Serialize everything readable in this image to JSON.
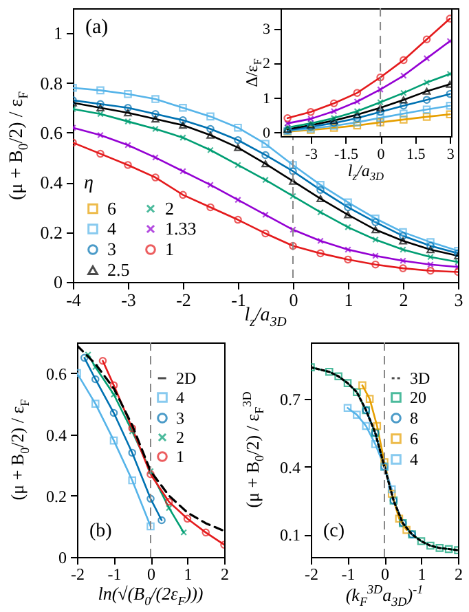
{
  "chart_data": [
    {
      "type": "line",
      "xlabel": "l$_{z}$/a$_{3D}$",
      "ylabel": "(μ + B$_{0}$/2) / ε$_{F}$",
      "legend_title": "η",
      "annotations": [
        "(a)"
      ],
      "legend": "bottom left",
      "line_style": "solid",
      "xlim": [
        -4,
        3
      ],
      "ylim": [
        0,
        1.1
      ],
      "xticks": [
        -4,
        -3,
        -2,
        -1,
        0,
        1,
        2,
        3
      ],
      "yticks": [
        0,
        0.2,
        0.4,
        0.6,
        0.8,
        1
      ],
      "ref_lines": [
        {
          "axis": "x",
          "value": 0,
          "color": "#888888",
          "line_style": "dashed"
        }
      ],
      "x": [
        -4,
        -3.5,
        -3,
        -2.5,
        -2,
        -1.5,
        -1,
        -0.5,
        0,
        0.5,
        1,
        1.5,
        2,
        2.5,
        3
      ],
      "series": [
        {
          "name": "6",
          "color": "#e69f00",
          "marker": "square",
          "values": [
            null,
            null,
            null,
            null,
            null,
            null,
            null,
            null,
            null,
            null,
            null,
            null,
            null,
            null,
            null
          ]
        },
        {
          "name": "4",
          "color": "#56b4e9",
          "marker": "square",
          "values": [
            0.78,
            0.77,
            0.755,
            0.735,
            0.7,
            0.665,
            0.62,
            0.555,
            0.47,
            0.39,
            0.32,
            0.255,
            0.2,
            0.16,
            0.125
          ]
        },
        {
          "name": "3",
          "color": "#0072b2",
          "marker": "circle",
          "values": [
            0.73,
            0.715,
            0.7,
            0.675,
            0.65,
            0.615,
            0.57,
            0.51,
            0.445,
            0.37,
            0.3,
            0.24,
            0.185,
            0.145,
            0.115
          ]
        },
        {
          "name": "2.5",
          "color": "#000000",
          "marker": "triangle",
          "values": [
            0.72,
            0.7,
            0.68,
            0.655,
            0.63,
            0.59,
            0.54,
            0.475,
            0.405,
            0.335,
            0.27,
            0.21,
            0.165,
            0.13,
            0.105
          ]
        },
        {
          "name": "2",
          "color": "#009e73",
          "marker": "cross",
          "values": [
            0.695,
            0.675,
            0.645,
            0.615,
            0.58,
            0.53,
            0.47,
            0.41,
            0.345,
            0.28,
            0.22,
            0.17,
            0.13,
            0.1,
            0.08
          ]
        },
        {
          "name": "1.33",
          "color": "#9400d3",
          "marker": "cross",
          "values": [
            0.62,
            0.59,
            0.55,
            0.5,
            0.445,
            0.39,
            0.33,
            0.27,
            0.21,
            0.165,
            0.13,
            0.105,
            0.085,
            0.07,
            0.06
          ]
        },
        {
          "name": "1",
          "color": "#e41a1c",
          "marker": "circle",
          "values": [
            0.56,
            0.515,
            0.47,
            0.42,
            0.35,
            0.3,
            0.25,
            0.195,
            0.145,
            0.115,
            0.09,
            0.07,
            0.055,
            0.045,
            0.04
          ]
        }
      ]
    },
    {
      "type": "line",
      "xlabel": "l$_{z}$/a$_{3D}$",
      "ylabel": "Δ/ε$_{F}$",
      "line_style": "solid",
      "xlim": [
        -4.3,
        3.05
      ],
      "ylim": [
        -0.1,
        3.6
      ],
      "xticks": [
        -3,
        -1.5,
        0,
        1.5,
        3
      ],
      "yticks": [
        0,
        1,
        2,
        3
      ],
      "ref_lines": [
        {
          "axis": "x",
          "value": 0,
          "color": "#888888",
          "line_style": "dashed"
        }
      ],
      "x": [
        -4,
        -3,
        -2,
        -1,
        0,
        1,
        2,
        3
      ],
      "series": [
        {
          "color": "#e69f00",
          "marker": "square",
          "values": [
            0.03,
            0.08,
            0.14,
            0.21,
            0.3,
            0.38,
            0.46,
            0.53
          ]
        },
        {
          "color": "#56b4e9",
          "marker": "square",
          "values": [
            0.05,
            0.12,
            0.2,
            0.3,
            0.43,
            0.55,
            0.67,
            0.78
          ]
        },
        {
          "color": "#0072b2",
          "marker": "circle",
          "values": [
            0.07,
            0.17,
            0.28,
            0.42,
            0.6,
            0.78,
            0.95,
            1.12
          ]
        },
        {
          "color": "#000000",
          "marker": "triangle",
          "values": [
            0.1,
            0.22,
            0.35,
            0.52,
            0.72,
            0.95,
            1.2,
            1.4
          ]
        },
        {
          "color": "#009e73",
          "marker": "cross",
          "values": [
            0.15,
            0.27,
            0.42,
            0.62,
            0.88,
            1.15,
            1.45,
            1.7
          ]
        },
        {
          "color": "#9400d3",
          "marker": "cross",
          "values": [
            0.27,
            0.4,
            0.62,
            0.9,
            1.25,
            1.65,
            2.15,
            2.65
          ]
        },
        {
          "color": "#e41a1c",
          "marker": "circle",
          "values": [
            0.42,
            0.6,
            0.85,
            1.15,
            1.6,
            2.1,
            2.7,
            3.3
          ]
        }
      ]
    },
    {
      "type": "line",
      "xlabel": "ln(√(B$_{0}$/(2ε$_{F}$)))",
      "ylabel": "(μ + B$_{0}$/2) / ε$_{F}$",
      "annotations": [
        "(b)"
      ],
      "legend": "top right",
      "line_style": "solid",
      "xlim": [
        -2,
        2
      ],
      "ylim": [
        0,
        0.7
      ],
      "xticks": [
        -2,
        -1,
        0,
        1,
        2
      ],
      "yticks": [
        0,
        0.2,
        0.4,
        0.6
      ],
      "ref_lines": [
        {
          "axis": "x",
          "value": 0,
          "color": "#888888",
          "line_style": "dashed"
        }
      ],
      "series": [
        {
          "name": "2D",
          "color": "#000000",
          "marker": "none",
          "line_style": "dashed",
          "x": [
            -2,
            -1.5,
            -1,
            -0.5,
            0,
            0.5,
            1,
            1.5,
            2
          ],
          "values": [
            0.69,
            0.63,
            0.55,
            0.43,
            0.28,
            0.2,
            0.145,
            0.11,
            0.085
          ]
        },
        {
          "name": "4",
          "color": "#56b4e9",
          "marker": "square",
          "x": [
            -2,
            -1.5,
            -1,
            -0.5,
            0
          ],
          "values": [
            0.6,
            0.5,
            0.38,
            0.25,
            0.1
          ]
        },
        {
          "name": "3",
          "color": "#0072b2",
          "marker": "circle",
          "x": [
            -1.8,
            -1.5,
            -1,
            -0.5,
            0,
            0.3
          ],
          "values": [
            0.65,
            0.58,
            0.47,
            0.34,
            0.19,
            0.12
          ]
        },
        {
          "name": "2",
          "color": "#009e73",
          "marker": "cross",
          "x": [
            -1.7,
            -1.5,
            -1,
            -0.5,
            0,
            0.5,
            0.9
          ],
          "values": [
            0.66,
            0.62,
            0.53,
            0.41,
            0.28,
            0.16,
            0.08
          ]
        },
        {
          "name": "1",
          "color": "#e41a1c",
          "marker": "circle",
          "x": [
            -1.3,
            -1,
            -0.5,
            0,
            0.5,
            1,
            1.5,
            2
          ],
          "values": [
            0.64,
            0.56,
            0.42,
            0.27,
            0.18,
            0.125,
            0.08,
            0.04
          ]
        }
      ]
    },
    {
      "type": "line",
      "xlabel": "(k$_{F}$$^{3D}$a$_{3D}$)$^{-1}$",
      "ylabel": "(μ + B$_{0}$/2) / ε$_{F}$$^{3D}$",
      "annotations": [
        "(c)"
      ],
      "legend": "top right",
      "line_style": "solid",
      "xlim": [
        -2,
        2
      ],
      "ylim": [
        0,
        0.95
      ],
      "xticks": [
        -2,
        -1,
        0,
        1,
        2
      ],
      "yticks": [
        0.1,
        0.4,
        0.7
      ],
      "ref_lines": [
        {
          "axis": "x",
          "value": 0,
          "color": "#888888",
          "line_style": "dashed"
        }
      ],
      "series": [
        {
          "name": "3D",
          "color": "#000000",
          "marker": "none",
          "line_style": "dotted",
          "x": [
            -2,
            -1.75,
            -1.5,
            -1.25,
            -1,
            -0.75,
            -0.5,
            -0.25,
            0,
            0.25,
            0.5,
            0.75,
            1,
            1.25,
            1.5,
            1.75,
            2
          ],
          "values": [
            0.84,
            0.83,
            0.82,
            0.8,
            0.77,
            0.73,
            0.65,
            0.55,
            0.4,
            0.25,
            0.15,
            0.1,
            0.07,
            0.05,
            0.04,
            0.035,
            0.03
          ]
        },
        {
          "name": "20",
          "color": "#009e73",
          "marker": "square",
          "x": [
            -2,
            -1.5,
            -1.25,
            -1,
            -0.75,
            -0.5,
            -0.25,
            0,
            0.25,
            0.5,
            0.75,
            1,
            1.25,
            1.5,
            1.75,
            2
          ],
          "values": [
            0.84,
            0.82,
            0.8,
            0.77,
            0.73,
            0.65,
            0.55,
            0.4,
            0.25,
            0.15,
            0.1,
            0.07,
            0.05,
            0.04,
            0.035,
            0.03
          ]
        },
        {
          "name": "8",
          "color": "#0072b2",
          "marker": "circle",
          "x": [
            -0.5,
            -0.25,
            0,
            0.25,
            0.5,
            0.75
          ],
          "values": [
            0.65,
            0.55,
            0.4,
            0.25,
            0.15,
            0.1
          ]
        },
        {
          "name": "6",
          "color": "#e69f00",
          "marker": "square",
          "x": [
            -0.6,
            -0.4,
            -0.2,
            0,
            0.2,
            0.4,
            0.6
          ],
          "values": [
            0.76,
            0.7,
            0.58,
            0.42,
            0.28,
            0.17,
            0.12
          ]
        },
        {
          "name": "4",
          "color": "#56b4e9",
          "marker": "square",
          "x": [
            -1,
            -0.75,
            -0.5,
            -0.25,
            0,
            0.2
          ],
          "values": [
            0.66,
            0.63,
            0.58,
            0.5,
            0.4,
            0.3
          ]
        }
      ]
    }
  ]
}
